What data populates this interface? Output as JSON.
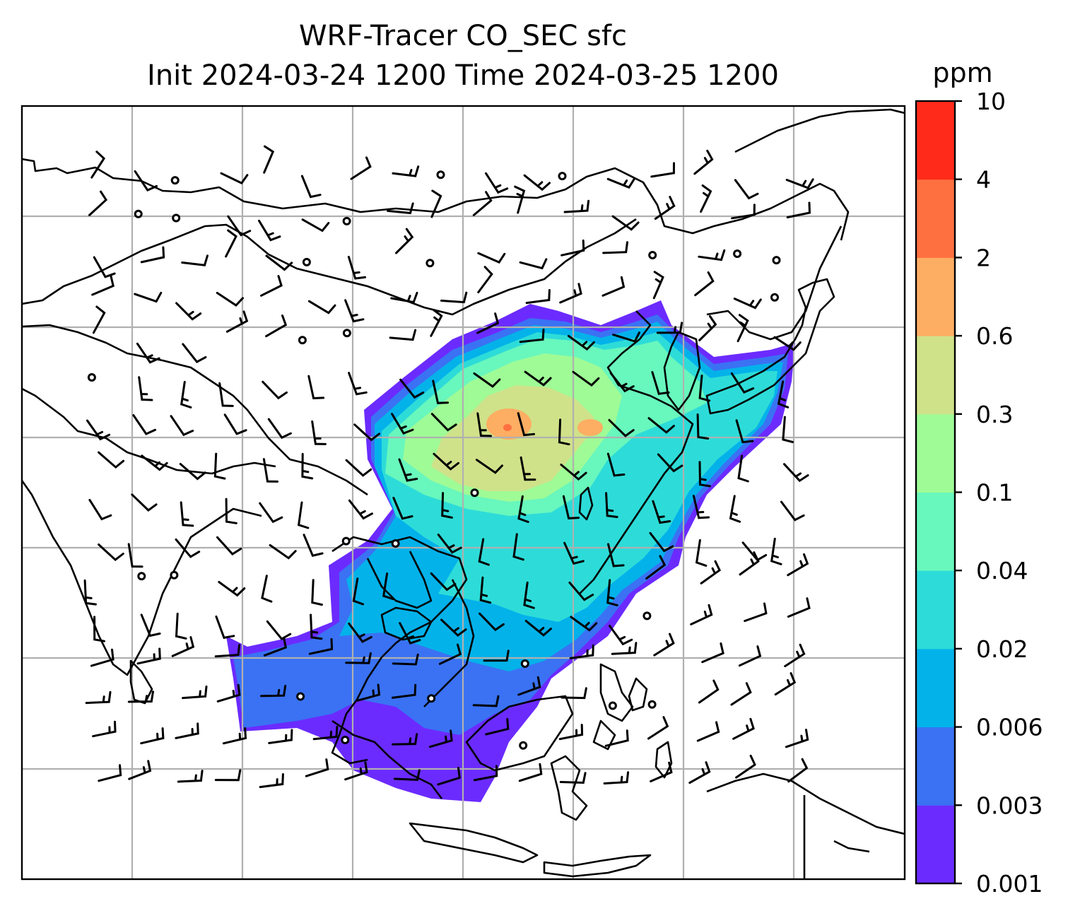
{
  "title": {
    "line1": "WRF-Tracer CO_SEC sfc",
    "line2": "Init 2024-03-24 1200 Time 2024-03-25 1200"
  },
  "colorbar": {
    "unit": "ppm",
    "levels": [
      "0.001",
      "0.003",
      "0.006",
      "0.02",
      "0.04",
      "0.1",
      "0.3",
      "0.6",
      "2",
      "4",
      "10"
    ],
    "colors": [
      "#6b2bff",
      "#3a72f3",
      "#04b2ea",
      "#2ddcd8",
      "#68f7bd",
      "#9ffb96",
      "#cfe28a",
      "#fdae63",
      "#ff7040",
      "#ff2a1a"
    ]
  },
  "map": {
    "field": "CO_SEC surface tracer concentration",
    "overlay": "wind barbs",
    "features": [
      "coastlines",
      "country borders",
      "lat-lon gridlines"
    ]
  }
}
